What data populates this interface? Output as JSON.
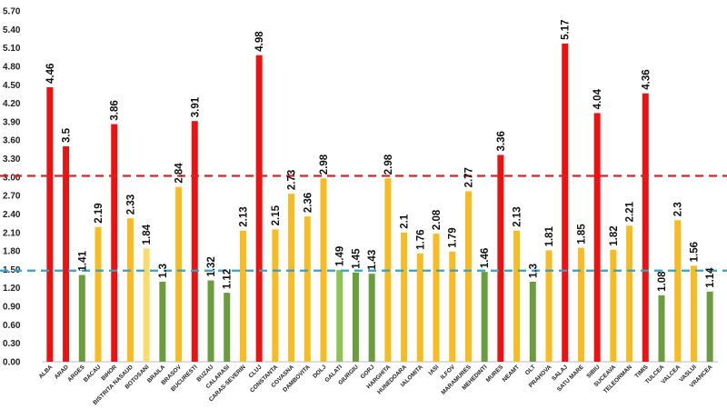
{
  "chart_data": {
    "type": "bar",
    "title": "",
    "xlabel": "",
    "ylabel": "",
    "ylim": [
      0,
      5.7
    ],
    "yticks": [
      "0.00",
      "0.30",
      "0.60",
      "0.90",
      "1.20",
      "1.50",
      "1.80",
      "2.10",
      "2.40",
      "2.70",
      "3.00",
      "3.30",
      "3.60",
      "3.90",
      "4.20",
      "4.50",
      "4.80",
      "5.10",
      "5.40",
      "5.70"
    ],
    "grid": false,
    "legend": "none",
    "categories": [
      "ALBA",
      "ARAD",
      "ARGES",
      "BACAU",
      "BIHOR",
      "BISTRITA NASAUD",
      "BOTOSANI",
      "BRAILA",
      "BRASOV",
      "BUCURESTI",
      "BUZAU",
      "CALARASI",
      "CARAS-SEVERIN",
      "CLUJ",
      "CONSTANTA",
      "COVASNA",
      "DAMBOVITA",
      "DOLJ",
      "GALATI",
      "GIURGIU",
      "GORJ",
      "HARGHITA",
      "HUNEDOARA",
      "IALOMITA",
      "IASI",
      "ILFOV",
      "MARAMURES",
      "MEHEDINTI",
      "MURES",
      "NEAMT",
      "OLT",
      "PRAHOVA",
      "SALAJ",
      "SATU MARE",
      "SIBIU",
      "SUCEAVA",
      "TELEORMAN",
      "TIMIS",
      "TULCEA",
      "VALCEA",
      "VASLUI",
      "VRANCEA"
    ],
    "values": [
      4.46,
      3.5,
      1.41,
      2.19,
      3.86,
      2.33,
      1.84,
      1.3,
      2.84,
      3.91,
      1.32,
      1.12,
      2.13,
      4.98,
      2.15,
      2.73,
      2.36,
      2.98,
      1.49,
      1.45,
      1.43,
      2.98,
      2.1,
      1.76,
      2.08,
      1.79,
      2.77,
      1.46,
      3.36,
      2.13,
      1.3,
      1.81,
      5.17,
      1.85,
      4.04,
      1.82,
      2.21,
      4.36,
      1.08,
      2.3,
      1.56,
      1.14
    ],
    "value_labels": [
      "4.46",
      "3.5",
      "1.41",
      "2.19",
      "3.86",
      "2.33",
      "1.84",
      "1.3",
      "2.84",
      "3.91",
      "1.32",
      "1.12",
      "2.13",
      "4.98",
      "2.15",
      "2.73",
      "2.36",
      "2.98",
      "1.49",
      "1.45",
      "1.43",
      "2.98",
      "2.1",
      "1.76",
      "2.08",
      "1.79",
      "2.77",
      "1.46",
      "3.36",
      "2.13",
      "1.3",
      "1.81",
      "5.17",
      "1.85",
      "4.04",
      "1.82",
      "2.21",
      "4.36",
      "1.08",
      "2.3",
      "1.56",
      "1.14"
    ],
    "bar_color_groups": [
      "red",
      "red",
      "green",
      "yellow",
      "red",
      "yellow",
      "light-yellow",
      "green",
      "yellow",
      "red",
      "green",
      "green",
      "yellow",
      "red",
      "yellow",
      "yellow",
      "yellow",
      "yellow",
      "light-green",
      "green",
      "green",
      "yellow",
      "yellow",
      "yellow",
      "yellow",
      "yellow",
      "yellow",
      "green",
      "red",
      "yellow",
      "green",
      "yellow",
      "red",
      "yellow",
      "red",
      "yellow",
      "yellow",
      "red",
      "green",
      "yellow",
      "yellow",
      "green"
    ],
    "colors": {
      "red": "#ee1111",
      "yellow": "#f8bb22",
      "light-yellow": "#fbdc6a",
      "green": "#6a9e3c",
      "light-green": "#8dc255",
      "upper_line": "#dd2222",
      "lower_line": "#2aa4d4"
    },
    "reference_lines": [
      {
        "value": 3.02,
        "style": "dashed",
        "color": "upper_line"
      },
      {
        "value": 1.48,
        "style": "dashed",
        "color": "lower_line"
      }
    ]
  }
}
